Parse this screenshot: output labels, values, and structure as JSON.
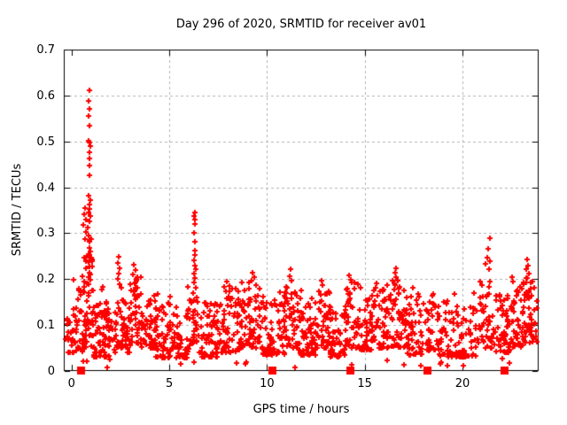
{
  "window": {
    "background": "#ffffff",
    "foreground": "#000000"
  },
  "chart_data": {
    "type": "scatter",
    "title": "Day 296 of 2020, SRMTID for receiver av01",
    "xlabel": "GPS time / hours",
    "ylabel": "SRMTID / TECUs",
    "xlim": [
      -0.4,
      23.9
    ],
    "ylim": [
      0,
      0.7
    ],
    "xticks": {
      "values": [
        0,
        5,
        10,
        15,
        20
      ],
      "labels": [
        "0",
        "5",
        "10",
        "15",
        "20"
      ]
    },
    "yticks": {
      "values": [
        0,
        0.1,
        0.2,
        0.3,
        0.4,
        0.5,
        0.6,
        0.7
      ],
      "labels": [
        "0",
        "0.1",
        "0.2",
        "0.3",
        "0.4",
        "0.5",
        "0.6",
        "0.7"
      ]
    },
    "grid": {
      "show": true,
      "color": "#b0b0b0",
      "dash": [
        3,
        3
      ],
      "x_values": [
        5,
        10,
        15,
        20
      ],
      "y_values": [
        0.1,
        0.2,
        0.3,
        0.4,
        0.5,
        0.6
      ]
    },
    "border_color": "#000000",
    "tick_length": 6,
    "legend": "none",
    "series": [
      {
        "name": "srmtid-plus-points",
        "marker": "plus",
        "color": "#ff0000",
        "marker_size": 7,
        "line_width": 2,
        "outlier_points": [
          [
            0.9,
            0.611
          ],
          [
            0.88,
            0.588
          ],
          [
            0.91,
            0.571
          ],
          [
            0.89,
            0.555
          ],
          [
            0.9,
            0.534
          ],
          [
            0.86,
            0.501
          ],
          [
            0.92,
            0.497
          ],
          [
            0.94,
            0.489
          ],
          [
            0.93,
            0.477
          ],
          [
            0.92,
            0.463
          ],
          [
            0.9,
            0.447
          ],
          [
            0.91,
            0.426
          ],
          [
            0.88,
            0.382
          ],
          [
            0.95,
            0.372
          ],
          [
            0.9,
            0.362
          ],
          [
            0.93,
            0.352
          ],
          [
            0.86,
            0.345
          ],
          [
            0.97,
            0.337
          ],
          [
            0.9,
            0.325
          ],
          [
            0.83,
            0.312
          ],
          [
            0.7,
            0.355
          ],
          [
            0.65,
            0.342
          ],
          [
            0.72,
            0.33
          ],
          [
            0.62,
            0.318
          ],
          [
            0.75,
            0.302
          ],
          [
            0.88,
            0.295
          ],
          [
            0.92,
            0.282
          ],
          [
            0.9,
            0.268
          ],
          [
            0.89,
            0.255
          ],
          [
            0.91,
            0.242
          ],
          [
            0.93,
            0.228
          ],
          [
            0.9,
            0.215
          ],
          [
            0.87,
            0.205
          ],
          [
            1.02,
            0.247
          ],
          [
            1.05,
            0.228
          ],
          [
            0.98,
            0.21
          ],
          [
            2.4,
            0.248
          ],
          [
            2.36,
            0.236
          ],
          [
            2.44,
            0.224
          ],
          [
            2.4,
            0.212
          ],
          [
            2.38,
            0.2
          ],
          [
            3.2,
            0.231
          ],
          [
            3.26,
            0.22
          ],
          [
            3.15,
            0.21
          ],
          [
            3.3,
            0.2
          ],
          [
            3.22,
            0.19
          ],
          [
            6.3,
            0.345
          ],
          [
            6.28,
            0.337
          ],
          [
            6.32,
            0.329
          ],
          [
            6.3,
            0.321
          ],
          [
            6.26,
            0.3
          ],
          [
            6.33,
            0.281
          ],
          [
            6.29,
            0.262
          ],
          [
            6.31,
            0.252
          ],
          [
            6.27,
            0.242
          ],
          [
            6.3,
            0.23
          ],
          [
            6.34,
            0.221
          ],
          [
            6.28,
            0.212
          ],
          [
            6.31,
            0.203
          ],
          [
            6.25,
            0.192
          ],
          [
            6.36,
            0.182
          ],
          [
            6.22,
            0.17
          ],
          [
            6.4,
            0.16
          ],
          [
            6.05,
            0.155
          ],
          [
            6.15,
            0.148
          ],
          [
            6.45,
            0.15
          ],
          [
            7.95,
            0.195
          ],
          [
            8.1,
            0.185
          ],
          [
            9.25,
            0.215
          ],
          [
            9.35,
            0.205
          ],
          [
            9.2,
            0.196
          ],
          [
            9.45,
            0.188
          ],
          [
            11.2,
            0.221
          ],
          [
            11.15,
            0.206
          ],
          [
            11.25,
            0.196
          ],
          [
            12.8,
            0.196
          ],
          [
            12.85,
            0.188
          ],
          [
            14.2,
            0.208
          ],
          [
            14.3,
            0.198
          ],
          [
            15.6,
            0.19
          ],
          [
            15.55,
            0.182
          ],
          [
            16.6,
            0.224
          ],
          [
            16.55,
            0.214
          ],
          [
            16.62,
            0.205
          ],
          [
            16.68,
            0.197
          ],
          [
            16.5,
            0.19
          ],
          [
            18.5,
            0.168
          ],
          [
            21.39,
            0.289
          ],
          [
            21.3,
            0.266
          ],
          [
            21.25,
            0.247
          ],
          [
            21.42,
            0.24
          ],
          [
            21.2,
            0.233
          ],
          [
            21.35,
            0.222
          ],
          [
            22.55,
            0.205
          ],
          [
            22.6,
            0.195
          ],
          [
            23.3,
            0.243
          ],
          [
            23.36,
            0.23
          ],
          [
            23.28,
            0.221
          ],
          [
            23.4,
            0.212
          ],
          [
            23.32,
            0.202
          ],
          [
            23.25,
            0.193
          ]
        ],
        "cluster_spec": {
          "seed": 42,
          "comment": "each cluster: [x_start, x_end, count, y_min, y_max, low_bias_power]",
          "clusters": [
            [
              -0.3,
              0.1,
              18,
              0.04,
              0.13,
              1.5
            ],
            [
              0.05,
              0.6,
              35,
              0.04,
              0.2,
              1.6
            ],
            [
              0.55,
              1.15,
              55,
              0.05,
              0.29,
              1.4
            ],
            [
              1.1,
              2.3,
              80,
              0.03,
              0.155,
              1.9
            ],
            [
              2.25,
              2.7,
              30,
              0.05,
              0.2,
              1.6
            ],
            [
              2.7,
              3.05,
              25,
              0.04,
              0.15,
              1.8
            ],
            [
              3.0,
              3.55,
              40,
              0.06,
              0.21,
              1.6
            ],
            [
              3.55,
              4.3,
              45,
              0.05,
              0.175,
              1.7
            ],
            [
              4.3,
              6.1,
              110,
              0.028,
              0.145,
              1.9
            ],
            [
              6.1,
              6.5,
              22,
              0.06,
              0.16,
              1.5
            ],
            [
              6.5,
              7.6,
              70,
              0.03,
              0.15,
              1.9
            ],
            [
              7.6,
              8.6,
              60,
              0.04,
              0.18,
              1.7
            ],
            [
              8.6,
              9.7,
              65,
              0.05,
              0.195,
              1.6
            ],
            [
              9.7,
              10.9,
              75,
              0.035,
              0.155,
              1.8
            ],
            [
              10.9,
              11.6,
              45,
              0.05,
              0.185,
              1.6
            ],
            [
              11.6,
              12.55,
              60,
              0.035,
              0.15,
              1.8
            ],
            [
              12.55,
              13.15,
              38,
              0.05,
              0.18,
              1.7
            ],
            [
              13.15,
              14.0,
              55,
              0.03,
              0.145,
              1.8
            ],
            [
              14.0,
              14.7,
              45,
              0.05,
              0.195,
              1.6
            ],
            [
              14.7,
              15.35,
              42,
              0.045,
              0.16,
              1.7
            ],
            [
              15.35,
              16.05,
              42,
              0.05,
              0.18,
              1.7
            ],
            [
              16.05,
              17.05,
              62,
              0.05,
              0.2,
              1.6
            ],
            [
              17.05,
              18.05,
              58,
              0.035,
              0.165,
              1.8
            ],
            [
              18.05,
              18.8,
              40,
              0.045,
              0.165,
              1.7
            ],
            [
              18.8,
              19.9,
              55,
              0.03,
              0.155,
              1.8
            ],
            [
              19.9,
              20.7,
              38,
              0.03,
              0.14,
              1.8
            ],
            [
              20.7,
              21.6,
              45,
              0.05,
              0.2,
              1.6
            ],
            [
              21.6,
              22.45,
              50,
              0.04,
              0.175,
              1.7
            ],
            [
              22.45,
              23.1,
              45,
              0.05,
              0.19,
              1.6
            ],
            [
              23.1,
              23.8,
              55,
              0.06,
              0.21,
              1.5
            ],
            [
              0.2,
              23.6,
              20,
              0.006,
              0.028,
              1.0
            ],
            [
              1.0,
              23.5,
              45,
              0.145,
              0.185,
              1.3
            ]
          ]
        }
      },
      {
        "name": "zero-line-square-markers",
        "marker": "filled-square",
        "color": "#ff0000",
        "marker_size": 9,
        "points": [
          [
            0.45,
            0
          ],
          [
            10.25,
            0
          ],
          [
            14.25,
            0
          ],
          [
            18.2,
            0
          ],
          [
            22.13,
            0
          ]
        ]
      }
    ]
  }
}
